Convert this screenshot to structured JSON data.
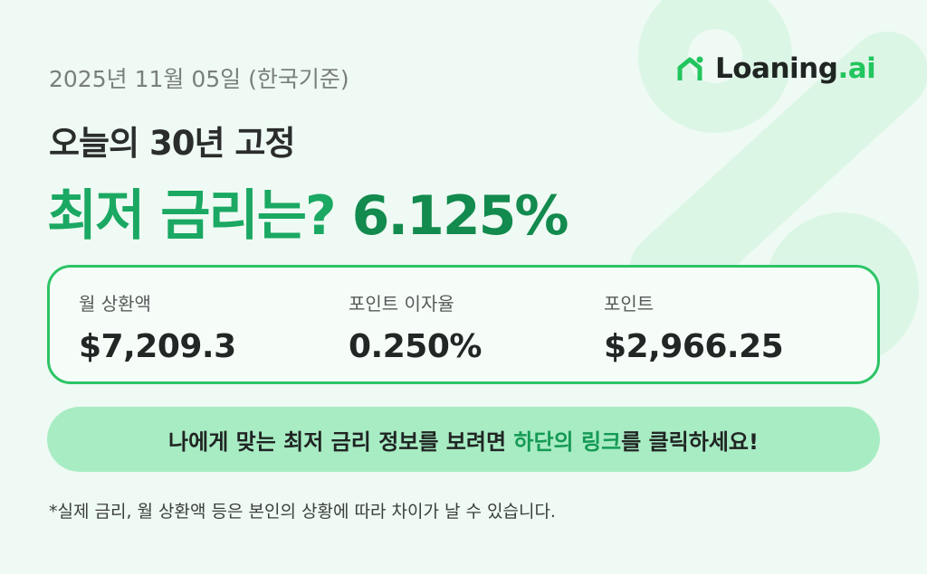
{
  "header": {
    "date": "2025년 11월 05일 (한국기준)",
    "logo": {
      "name": "Loaning",
      "suffix": ".ai",
      "icon": "house-icon"
    }
  },
  "headline": {
    "line1": "오늘의 30년 고정",
    "line2": "최저 금리는?",
    "rate": "6.125%"
  },
  "stats": [
    {
      "label": "월 상환액",
      "value": "$7,209.3"
    },
    {
      "label": "포인트 이자율",
      "value": "0.250%"
    },
    {
      "label": "포인트",
      "value": "$2,966.25"
    }
  ],
  "cta": {
    "prefix": "나에게 맞는 최저 금리 정보를 보려면 ",
    "highlight": "하단의 링크",
    "suffix": "를 클릭하세요!"
  },
  "note": "*실제 금리, 월 상환액 등은 본인의 상황에 따라 차이가 날 수 있습니다.",
  "colors": {
    "accent": "#22c55e",
    "headline": "#1aa862",
    "rate": "#138a4e",
    "cta_bg": "#a8ecc4",
    "background": "#eefaf3"
  }
}
